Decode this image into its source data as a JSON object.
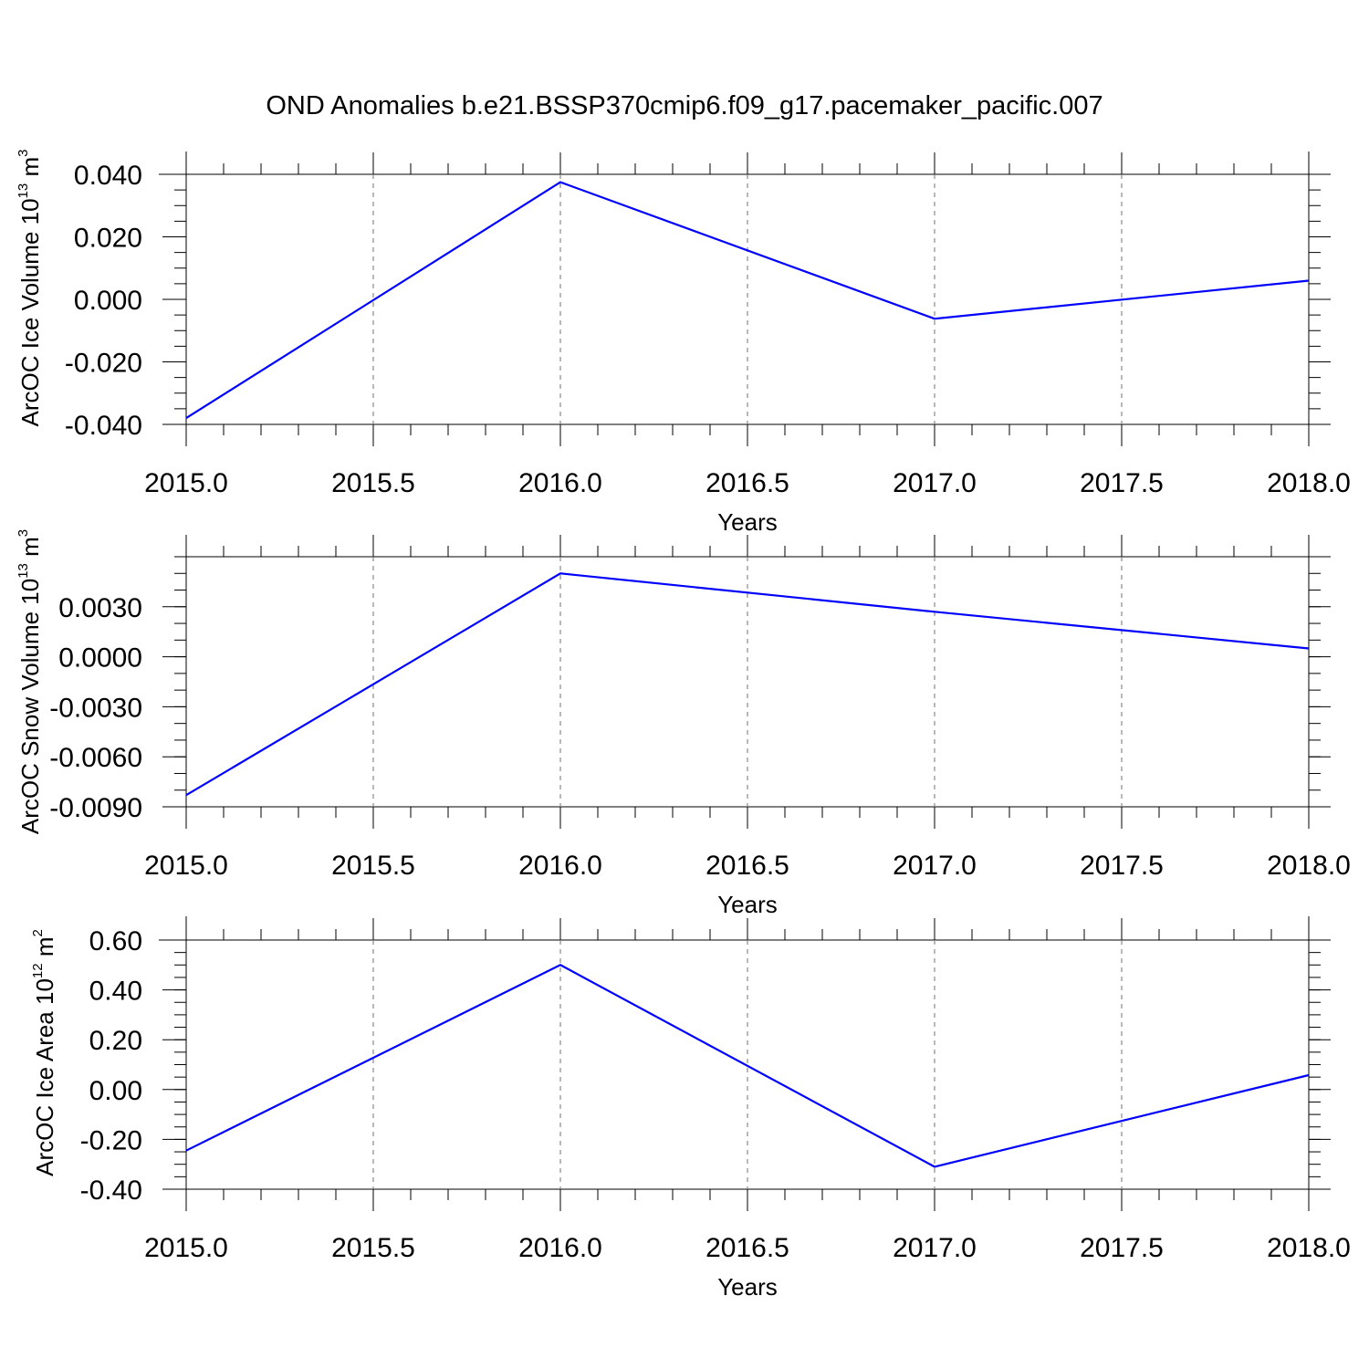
{
  "title": "OND Anomalies b.e21.BSSP370cmip6.f09_g17.pacemaker_pacific.007",
  "colors": {
    "series": "#0000ff",
    "grid": "#8a8a8a",
    "axis": "#000000"
  },
  "chart_data": [
    {
      "type": "line",
      "xlabel": "Years",
      "ylabel": {
        "main": "ArcOC Ice Volume 10",
        "exp": "13",
        "sep": " m",
        "unit_exp": "3"
      },
      "xlim": [
        2015.0,
        2018.0
      ],
      "ylim": [
        -0.04,
        0.04
      ],
      "xticks": [
        2015.0,
        2015.5,
        2016.0,
        2016.5,
        2017.0,
        2017.5,
        2018.0
      ],
      "xtick_labels": [
        "2015.0",
        "2015.5",
        "2016.0",
        "2016.5",
        "2017.0",
        "2017.5",
        "2018.0"
      ],
      "yticks": [
        -0.04,
        -0.02,
        0.0,
        0.02,
        0.04
      ],
      "ytick_labels": [
        "-0.040",
        "-0.020",
        "0.000",
        "0.020",
        "0.040"
      ],
      "yminor": 0.005,
      "grid": "vertical-dashed",
      "x": [
        2015,
        2016,
        2017,
        2018
      ],
      "y": [
        -0.038,
        0.0375,
        -0.0062,
        0.006
      ]
    },
    {
      "type": "line",
      "xlabel": "Years",
      "ylabel": {
        "main": "ArcOC Snow Volume 10",
        "exp": "13",
        "sep": " m",
        "unit_exp": "3"
      },
      "xlim": [
        2015.0,
        2018.0
      ],
      "ylim": [
        -0.009,
        0.006
      ],
      "xticks": [
        2015.0,
        2015.5,
        2016.0,
        2016.5,
        2017.0,
        2017.5,
        2018.0
      ],
      "xtick_labels": [
        "2015.0",
        "2015.5",
        "2016.0",
        "2016.5",
        "2017.0",
        "2017.5",
        "2018.0"
      ],
      "yticks": [
        -0.009,
        -0.006,
        -0.003,
        0.0,
        0.003
      ],
      "ytick_labels": [
        "-0.0090",
        "-0.0060",
        "-0.0030",
        "0.0000",
        "0.0030"
      ],
      "yminor": 0.001,
      "grid": "vertical-dashed",
      "x": [
        2015,
        2016,
        2017,
        2018
      ],
      "y": [
        -0.0083,
        0.005,
        0.0027,
        0.0005
      ]
    },
    {
      "type": "line",
      "xlabel": "Years",
      "ylabel": {
        "main": "ArcOC Ice Area 10",
        "exp": "12",
        "sep": " m",
        "unit_exp": "2"
      },
      "xlim": [
        2015.0,
        2018.0
      ],
      "ylim": [
        -0.4,
        0.6
      ],
      "xticks": [
        2015.0,
        2015.5,
        2016.0,
        2016.5,
        2017.0,
        2017.5,
        2018.0
      ],
      "xtick_labels": [
        "2015.0",
        "2015.5",
        "2016.0",
        "2016.5",
        "2017.0",
        "2017.5",
        "2018.0"
      ],
      "yticks": [
        -0.4,
        -0.2,
        0.0,
        0.2,
        0.4,
        0.6
      ],
      "ytick_labels": [
        "-0.40",
        "-0.20",
        "0.00",
        "0.20",
        "0.40",
        "0.60"
      ],
      "yminor": 0.05,
      "grid": "vertical-dashed",
      "x": [
        2015,
        2016,
        2017,
        2018
      ],
      "y": [
        -0.245,
        0.5,
        -0.31,
        0.058
      ]
    }
  ]
}
